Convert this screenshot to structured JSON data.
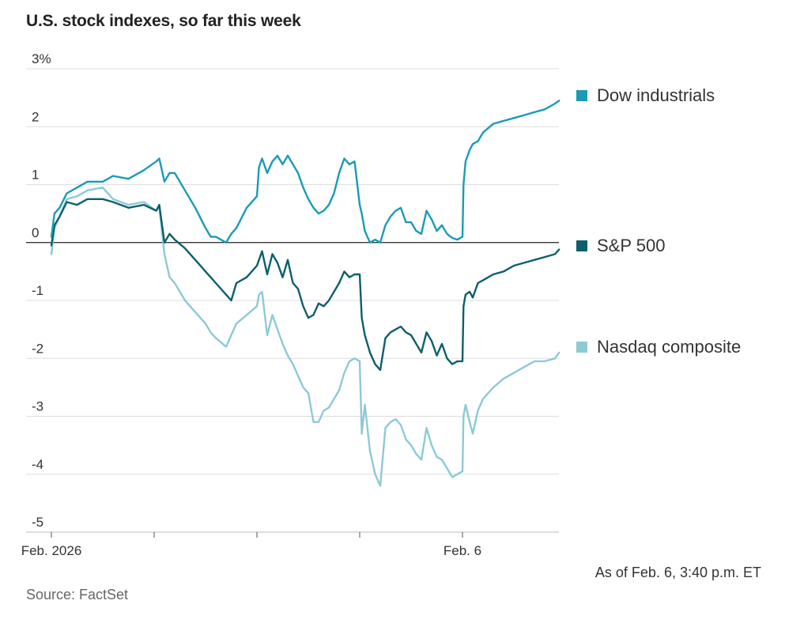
{
  "title": "U.S. stock indexes, so far this week",
  "note": "As of Feb. 6, 3:40 p.m. ET",
  "source": "Source: FactSet",
  "colors": {
    "dow": "#1a9bb5",
    "sp": "#0e5f6b",
    "nasdaq": "#8ec9d6",
    "zero": "#222222",
    "grid": "#dddddd"
  },
  "legend": [
    {
      "key": "dow",
      "label": "Dow industrials"
    },
    {
      "key": "sp",
      "label": "S&P 500"
    },
    {
      "key": "nasdaq",
      "label": "Nasdaq composite"
    }
  ],
  "chart_data": {
    "type": "line",
    "title": "U.S. stock indexes, so far this week",
    "ylabel": "%",
    "ylim": [
      -5,
      3
    ],
    "yticks": [
      -5,
      -4,
      -3,
      -2,
      -1,
      0,
      1,
      2,
      3
    ],
    "ytick_labels": [
      "-5",
      "-4",
      "-3",
      "-2",
      "-1",
      "0",
      "1",
      "2",
      "3%"
    ],
    "xlim": [
      0,
      4.94
    ],
    "x_ticks": [
      0,
      1,
      2,
      3,
      4
    ],
    "x_tick_labels": [
      "Feb. 2026",
      "",
      "",
      "",
      "Feb. 6"
    ],
    "series": [
      {
        "key": "dow",
        "name": "Dow industrials",
        "x": [
          0,
          0.03,
          0.08,
          0.15,
          0.25,
          0.35,
          0.5,
          0.6,
          0.75,
          0.9,
          1.02,
          1.05,
          1.1,
          1.15,
          1.2,
          1.3,
          1.4,
          1.5,
          1.55,
          1.6,
          1.7,
          1.75,
          1.8,
          1.9,
          2.0,
          2.02,
          2.05,
          2.1,
          2.15,
          2.2,
          2.25,
          2.3,
          2.35,
          2.4,
          2.45,
          2.5,
          2.55,
          2.6,
          2.65,
          2.7,
          2.75,
          2.8,
          2.85,
          2.9,
          2.95,
          3.0,
          3.02,
          3.05,
          3.1,
          3.15,
          3.2,
          3.25,
          3.3,
          3.35,
          3.4,
          3.45,
          3.5,
          3.55,
          3.6,
          3.65,
          3.7,
          3.75,
          3.8,
          3.85,
          3.9,
          3.95,
          4.0,
          4.01,
          4.03,
          4.07,
          4.1,
          4.15,
          4.2,
          4.3,
          4.4,
          4.5,
          4.6,
          4.7,
          4.8,
          4.9,
          4.94
        ],
        "values": [
          0.1,
          0.5,
          0.6,
          0.85,
          0.95,
          1.05,
          1.05,
          1.15,
          1.1,
          1.25,
          1.4,
          1.45,
          1.05,
          1.2,
          1.2,
          0.9,
          0.6,
          0.25,
          0.1,
          0.1,
          0.0,
          0.15,
          0.25,
          0.6,
          0.8,
          1.3,
          1.45,
          1.2,
          1.4,
          1.5,
          1.35,
          1.5,
          1.35,
          1.2,
          0.95,
          0.75,
          0.6,
          0.5,
          0.55,
          0.65,
          0.85,
          1.2,
          1.45,
          1.35,
          1.4,
          0.65,
          0.5,
          0.2,
          0.0,
          0.05,
          0.0,
          0.3,
          0.45,
          0.55,
          0.6,
          0.35,
          0.35,
          0.2,
          0.15,
          0.55,
          0.4,
          0.2,
          0.3,
          0.15,
          0.08,
          0.05,
          0.1,
          1.0,
          1.4,
          1.6,
          1.7,
          1.75,
          1.9,
          2.05,
          2.1,
          2.15,
          2.2,
          2.25,
          2.3,
          2.4,
          2.45
        ]
      },
      {
        "key": "sp",
        "name": "S&P 500",
        "x": [
          0,
          0.03,
          0.08,
          0.15,
          0.25,
          0.35,
          0.5,
          0.6,
          0.75,
          0.9,
          1.02,
          1.05,
          1.1,
          1.15,
          1.2,
          1.3,
          1.4,
          1.5,
          1.55,
          1.6,
          1.7,
          1.75,
          1.8,
          1.9,
          2.0,
          2.02,
          2.05,
          2.1,
          2.15,
          2.2,
          2.25,
          2.3,
          2.35,
          2.4,
          2.45,
          2.5,
          2.55,
          2.6,
          2.65,
          2.7,
          2.75,
          2.8,
          2.85,
          2.9,
          2.95,
          3.0,
          3.02,
          3.05,
          3.1,
          3.15,
          3.2,
          3.25,
          3.3,
          3.35,
          3.4,
          3.45,
          3.5,
          3.55,
          3.6,
          3.65,
          3.7,
          3.75,
          3.8,
          3.85,
          3.9,
          3.95,
          4.0,
          4.01,
          4.03,
          4.07,
          4.1,
          4.15,
          4.2,
          4.3,
          4.4,
          4.5,
          4.6,
          4.7,
          4.8,
          4.9,
          4.94
        ],
        "values": [
          -0.05,
          0.3,
          0.45,
          0.7,
          0.65,
          0.75,
          0.75,
          0.7,
          0.6,
          0.65,
          0.55,
          0.65,
          0.0,
          0.15,
          0.05,
          -0.1,
          -0.3,
          -0.5,
          -0.6,
          -0.7,
          -0.9,
          -1.0,
          -0.7,
          -0.6,
          -0.4,
          -0.3,
          -0.15,
          -0.55,
          -0.2,
          -0.35,
          -0.6,
          -0.3,
          -0.7,
          -0.8,
          -1.1,
          -1.3,
          -1.25,
          -1.05,
          -1.1,
          -1.0,
          -0.85,
          -0.7,
          -0.5,
          -0.6,
          -0.55,
          -0.55,
          -1.3,
          -1.6,
          -1.9,
          -2.1,
          -2.2,
          -1.65,
          -1.55,
          -1.5,
          -1.45,
          -1.55,
          -1.6,
          -1.75,
          -1.9,
          -1.55,
          -1.7,
          -1.95,
          -1.75,
          -2.0,
          -2.1,
          -2.05,
          -2.05,
          -1.1,
          -0.9,
          -0.85,
          -0.95,
          -0.7,
          -0.65,
          -0.55,
          -0.5,
          -0.4,
          -0.35,
          -0.3,
          -0.25,
          -0.2,
          -0.12
        ]
      },
      {
        "key": "nasdaq",
        "name": "Nasdaq composite",
        "x": [
          0,
          0.03,
          0.08,
          0.15,
          0.25,
          0.35,
          0.5,
          0.6,
          0.75,
          0.9,
          1.02,
          1.05,
          1.1,
          1.15,
          1.2,
          1.3,
          1.4,
          1.5,
          1.55,
          1.6,
          1.7,
          1.75,
          1.8,
          1.9,
          2.0,
          2.02,
          2.05,
          2.1,
          2.15,
          2.2,
          2.25,
          2.3,
          2.35,
          2.4,
          2.45,
          2.5,
          2.55,
          2.6,
          2.65,
          2.7,
          2.75,
          2.8,
          2.85,
          2.9,
          2.95,
          3.0,
          3.02,
          3.05,
          3.1,
          3.15,
          3.2,
          3.25,
          3.3,
          3.35,
          3.4,
          3.45,
          3.5,
          3.55,
          3.6,
          3.65,
          3.7,
          3.75,
          3.8,
          3.85,
          3.9,
          3.95,
          4.0,
          4.01,
          4.03,
          4.07,
          4.1,
          4.15,
          4.2,
          4.3,
          4.4,
          4.5,
          4.6,
          4.7,
          4.8,
          4.9,
          4.94
        ],
        "values": [
          -0.2,
          0.25,
          0.45,
          0.75,
          0.8,
          0.9,
          0.95,
          0.75,
          0.65,
          0.7,
          0.55,
          0.6,
          -0.2,
          -0.6,
          -0.7,
          -1.0,
          -1.2,
          -1.4,
          -1.55,
          -1.65,
          -1.8,
          -1.6,
          -1.4,
          -1.25,
          -1.1,
          -0.9,
          -0.85,
          -1.6,
          -1.25,
          -1.5,
          -1.75,
          -1.95,
          -2.1,
          -2.3,
          -2.5,
          -2.6,
          -3.1,
          -3.1,
          -2.9,
          -2.85,
          -2.7,
          -2.55,
          -2.25,
          -2.05,
          -2.0,
          -2.05,
          -3.3,
          -2.8,
          -3.6,
          -4.0,
          -4.2,
          -3.2,
          -3.1,
          -3.05,
          -3.15,
          -3.4,
          -3.5,
          -3.65,
          -3.75,
          -3.2,
          -3.5,
          -3.7,
          -3.75,
          -3.9,
          -4.05,
          -4.0,
          -3.95,
          -3.0,
          -2.8,
          -3.1,
          -3.3,
          -2.9,
          -2.7,
          -2.5,
          -2.35,
          -2.25,
          -2.15,
          -2.05,
          -2.05,
          -2.0,
          -1.9
        ]
      }
    ]
  }
}
